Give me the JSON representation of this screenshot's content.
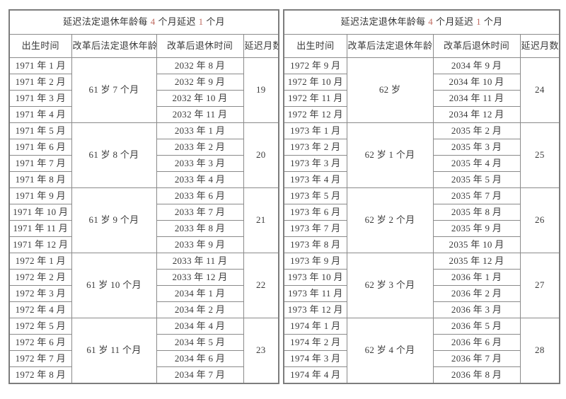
{
  "page": {
    "background": "#ffffff",
    "text_color": "#3a3a3a",
    "border_color": "#8a8a8a",
    "accent_red": "#bf6b60"
  },
  "tables": [
    {
      "id": "left",
      "title": {
        "part1": "延迟法定退休年龄每 ",
        "num1": "4",
        "part2": " 个月延迟 ",
        "num2": "1",
        "part3": " 个月"
      },
      "columns": [
        "出生时间",
        "改革后法定退休年龄",
        "改革后退休时间",
        "延迟月数"
      ],
      "groups": [
        {
          "age": "61 岁 7 个月",
          "delay_months": "19",
          "rows": [
            {
              "birth": "1971 年 1 月",
              "retire": "2032 年 8 月"
            },
            {
              "birth": "1971 年 2 月",
              "retire": "2032 年 9 月"
            },
            {
              "birth": "1971 年 3 月",
              "retire": "2032 年 10 月"
            },
            {
              "birth": "1971 年 4 月",
              "retire": "2032 年 11 月"
            }
          ]
        },
        {
          "age": "61 岁 8 个月",
          "delay_months": "20",
          "rows": [
            {
              "birth": "1971 年 5 月",
              "retire": "2033 年 1 月"
            },
            {
              "birth": "1971 年 6 月",
              "retire": "2033 年 2 月"
            },
            {
              "birth": "1971 年 7 月",
              "retire": "2033 年 3 月"
            },
            {
              "birth": "1971 年 8 月",
              "retire": "2033 年 4 月"
            }
          ]
        },
        {
          "age": "61 岁 9 个月",
          "delay_months": "21",
          "rows": [
            {
              "birth": "1971 年 9 月",
              "retire": "2033 年 6 月"
            },
            {
              "birth": "1971 年 10 月",
              "retire": "2033 年 7 月"
            },
            {
              "birth": "1971 年 11 月",
              "retire": "2033 年 8 月"
            },
            {
              "birth": "1971 年 12 月",
              "retire": "2033 年 9 月"
            }
          ]
        },
        {
          "age": "61 岁 10 个月",
          "delay_months": "22",
          "rows": [
            {
              "birth": "1972 年 1 月",
              "retire": "2033 年 11 月"
            },
            {
              "birth": "1972 年 2 月",
              "retire": "2033 年 12 月"
            },
            {
              "birth": "1972 年 3 月",
              "retire": "2034 年 1 月"
            },
            {
              "birth": "1972 年 4 月",
              "retire": "2034 年 2 月"
            }
          ]
        },
        {
          "age": "61 岁 11 个月",
          "delay_months": "23",
          "rows": [
            {
              "birth": "1972 年 5 月",
              "retire": "2034 年 4 月"
            },
            {
              "birth": "1972 年 6 月",
              "retire": "2034 年 5 月"
            },
            {
              "birth": "1972 年 7 月",
              "retire": "2034 年 6 月"
            },
            {
              "birth": "1972 年 8 月",
              "retire": "2034 年 7 月"
            }
          ]
        }
      ]
    },
    {
      "id": "right",
      "title": {
        "part1": "延迟法定退休年龄每 ",
        "num1": "4",
        "part2": " 个月延迟 ",
        "num2": "1",
        "part3": " 个月"
      },
      "columns": [
        "出生时间",
        "改革后法定退休年龄",
        "改革后退休时间",
        "延迟月数"
      ],
      "groups": [
        {
          "age": "62 岁",
          "delay_months": "24",
          "rows": [
            {
              "birth": "1972 年 9 月",
              "retire": "2034 年 9 月"
            },
            {
              "birth": "1972 年 10 月",
              "retire": "2034 年 10 月"
            },
            {
              "birth": "1972 年 11 月",
              "retire": "2034 年 11 月"
            },
            {
              "birth": "1972 年 12 月",
              "retire": "2034 年 12 月"
            }
          ]
        },
        {
          "age": "62 岁 1 个月",
          "delay_months": "25",
          "rows": [
            {
              "birth": "1973 年 1 月",
              "retire": "2035 年 2 月"
            },
            {
              "birth": "1973 年 2 月",
              "retire": "2035 年 3 月"
            },
            {
              "birth": "1973 年 3 月",
              "retire": "2035 年 4 月"
            },
            {
              "birth": "1973 年 4 月",
              "retire": "2035 年 5 月"
            }
          ]
        },
        {
          "age": "62 岁 2 个月",
          "delay_months": "26",
          "rows": [
            {
              "birth": "1973 年 5 月",
              "retire": "2035 年 7 月"
            },
            {
              "birth": "1973 年 6 月",
              "retire": "2035 年 8 月"
            },
            {
              "birth": "1973 年 7 月",
              "retire": "2035 年 9 月"
            },
            {
              "birth": "1973 年 8 月",
              "retire": "2035 年 10 月"
            }
          ]
        },
        {
          "age": "62 岁 3 个月",
          "delay_months": "27",
          "rows": [
            {
              "birth": "1973 年 9 月",
              "retire": "2035 年 12 月"
            },
            {
              "birth": "1973 年 10 月",
              "retire": "2036 年 1 月"
            },
            {
              "birth": "1973 年 11 月",
              "retire": "2036 年 2 月"
            },
            {
              "birth": "1973 年 12 月",
              "retire": "2036 年 3 月"
            }
          ]
        },
        {
          "age": "62 岁 4 个月",
          "delay_months": "28",
          "rows": [
            {
              "birth": "1974 年 1 月",
              "retire": "2036 年 5 月"
            },
            {
              "birth": "1974 年 2 月",
              "retire": "2036 年 6 月"
            },
            {
              "birth": "1974 年 3 月",
              "retire": "2036 年 7 月"
            },
            {
              "birth": "1974 年 4 月",
              "retire": "2036 年 8 月"
            }
          ]
        }
      ]
    }
  ]
}
